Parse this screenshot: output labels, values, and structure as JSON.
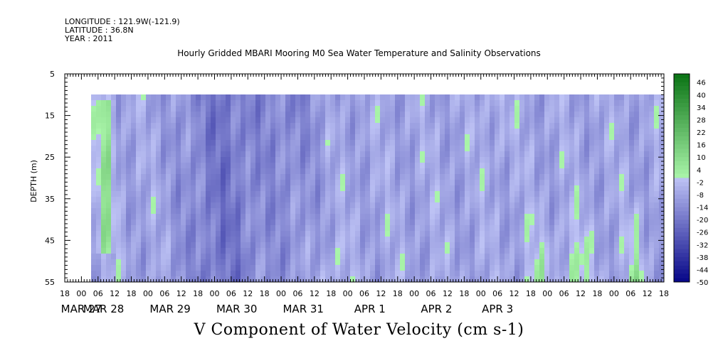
{
  "header": {
    "longitude": "LONGITUDE : 121.9W(-121.9)",
    "latitude": "LATITUDE : 36.8N",
    "year": "YEAR : 2011"
  },
  "chart_data": {
    "type": "heatmap",
    "title": "Hourly Gridded MBARI Mooring M0 Sea Water Temperature and Salinity Observations",
    "xlabel": "V Component of Water Velocity (cm s-1)",
    "ylabel": "DEPTH (m)",
    "ylim": [
      55,
      5
    ],
    "y_ticks": [
      5,
      15,
      25,
      35,
      45,
      55
    ],
    "data_depth_range": [
      10,
      55
    ],
    "x_start": "MAR 26 18:00",
    "x_hour_labels": [
      "18",
      "00",
      "06",
      "12",
      "18",
      "00",
      "06",
      "12",
      "18",
      "00",
      "06",
      "12",
      "18",
      "00",
      "06",
      "12",
      "18",
      "00",
      "06",
      "12",
      "18",
      "00",
      "06",
      "12",
      "18",
      "00",
      "06",
      "12",
      "18",
      "00",
      "06",
      "12",
      "18",
      "00",
      "06",
      "12",
      "18"
    ],
    "x_date_labels": [
      "MAR 27",
      "MAR 28",
      "MAR 29",
      "MAR 30",
      "MAR 31",
      "APR 1",
      "APR 2",
      "APR 3"
    ],
    "colorbar": {
      "min": -50,
      "max": 50,
      "step": 2,
      "labels": [
        "46",
        "40",
        "34",
        "28",
        "22",
        "16",
        "10",
        "4",
        "-2",
        "-8",
        "-14",
        "-20",
        "-26",
        "-32",
        "-38",
        "-44",
        "-50"
      ]
    },
    "field_summary": [
      {
        "time": "MAR 27 06",
        "depth": "12-50",
        "v": 6
      },
      {
        "time": "MAR 29 12",
        "depth": "10-55",
        "v": -28
      },
      {
        "time": "MAR 30 06",
        "depth": "10-40",
        "v": -26
      },
      {
        "time": "APR 2 06",
        "depth": "35-55",
        "v": 8
      },
      {
        "time": "APR 2 21",
        "depth": "30-55",
        "v": 10
      },
      {
        "time": "APR 3 09",
        "depth": "35-55",
        "v": 12
      }
    ]
  }
}
